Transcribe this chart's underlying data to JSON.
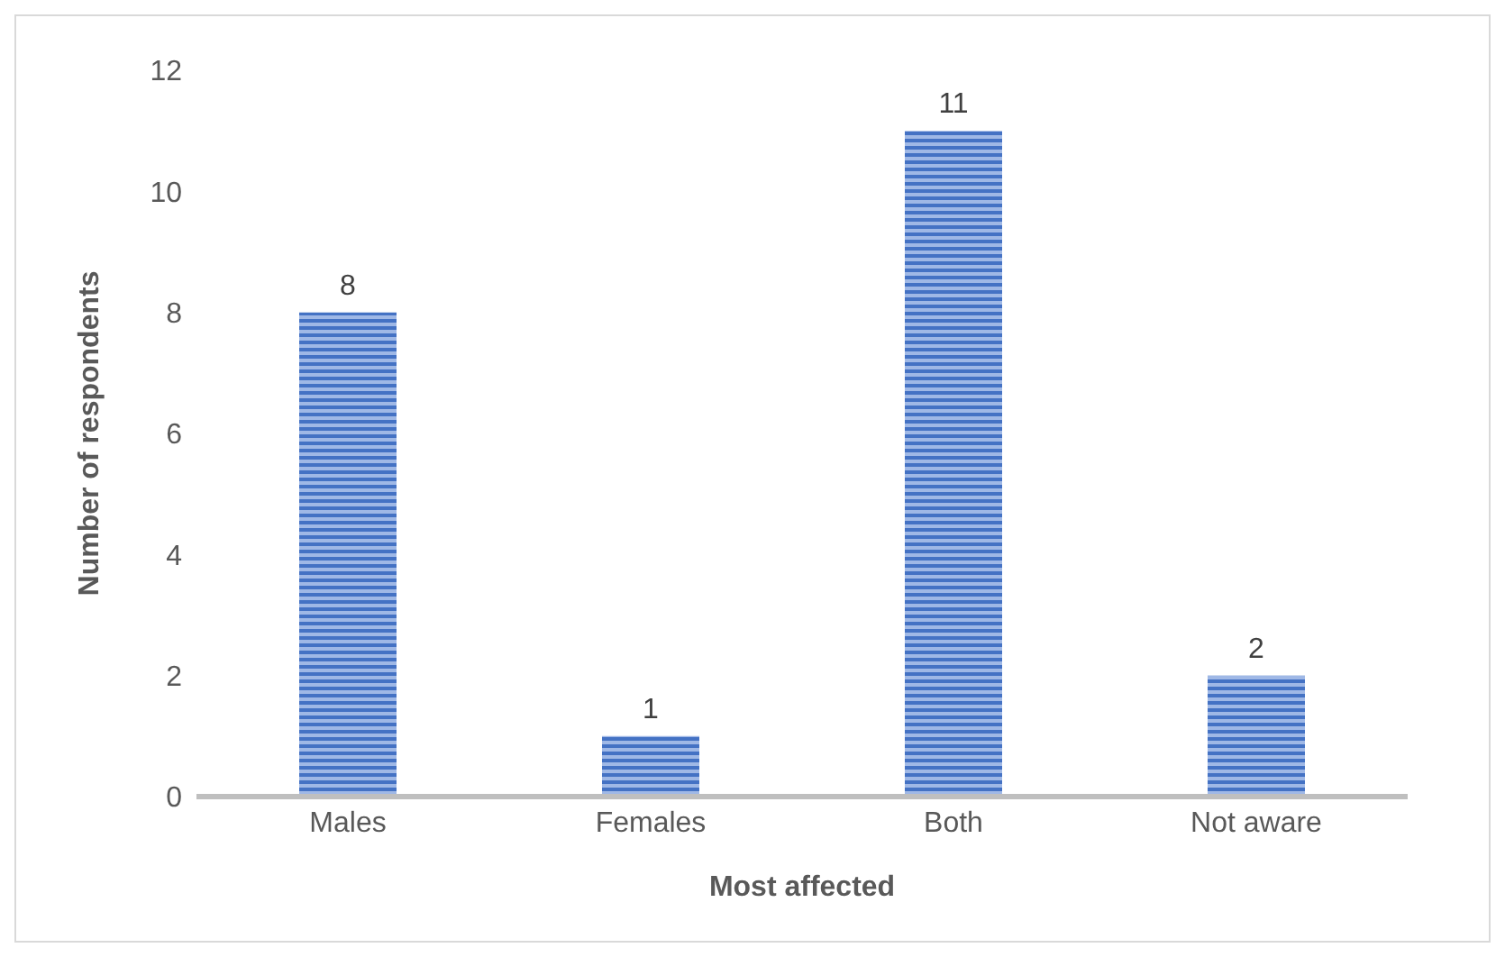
{
  "chart_data": {
    "type": "bar",
    "xlabel": "Most affected",
    "ylabel": "Number of respondents",
    "categories": [
      "Males",
      "Females",
      "Both",
      "Not aware"
    ],
    "values": [
      8,
      1,
      11,
      2
    ],
    "color": "#4472c4",
    "ylim": [
      0,
      12
    ],
    "yticks": [
      0,
      2,
      4,
      6,
      8,
      10,
      12
    ],
    "grid": false,
    "data_labels": true
  }
}
